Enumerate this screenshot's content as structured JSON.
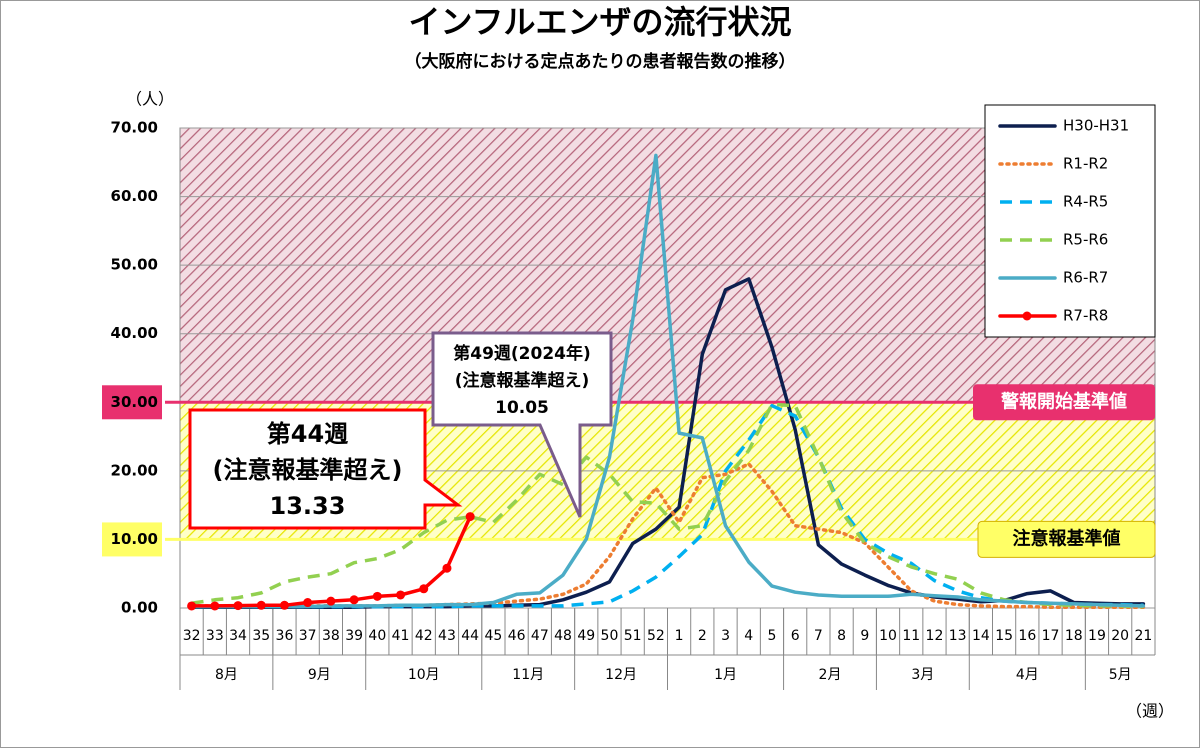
{
  "chart_data": {
    "type": "line",
    "title": "インフルエンザの流行状況",
    "subtitle": "（大阪府における定点あたりの患者報告数の推移）",
    "y_label": "（人）",
    "x_label": "（週）",
    "categories": [
      "32",
      "33",
      "34",
      "35",
      "36",
      "37",
      "38",
      "39",
      "40",
      "41",
      "42",
      "43",
      "44",
      "45",
      "46",
      "47",
      "48",
      "49",
      "50",
      "51",
      "52",
      "1",
      "2",
      "3",
      "4",
      "5",
      "6",
      "7",
      "8",
      "9",
      "10",
      "11",
      "12",
      "13",
      "14",
      "15",
      "16",
      "17",
      "18",
      "19",
      "20",
      "21"
    ],
    "x_groups": [
      {
        "label": "8月",
        "count": 4
      },
      {
        "label": "9月",
        "count": 4
      },
      {
        "label": "10月",
        "count": 5
      },
      {
        "label": "11月",
        "count": 4
      },
      {
        "label": "12月",
        "count": 4
      },
      {
        "label": "1月",
        "count": 5
      },
      {
        "label": "2月",
        "count": 4
      },
      {
        "label": "3月",
        "count": 4
      },
      {
        "label": "4月",
        "count": 5
      },
      {
        "label": "5月",
        "count": 3
      }
    ],
    "ylim": [
      0,
      70
    ],
    "yticks": [
      {
        "value": 0,
        "label": "0.00"
      },
      {
        "value": 10,
        "label": "10.00"
      },
      {
        "value": 20,
        "label": "20.00"
      },
      {
        "value": 30,
        "label": "30.00"
      },
      {
        "value": 40,
        "label": "40.00"
      },
      {
        "value": 50,
        "label": "50.00"
      },
      {
        "value": 60,
        "label": "60.00"
      },
      {
        "value": 70,
        "label": "70.00"
      }
    ],
    "grid": true,
    "legend": "upper right",
    "thresholds": [
      {
        "value": 10,
        "label": "注意報基準値",
        "color": "#ffff66"
      },
      {
        "value": 30,
        "label": "警報開始基準値",
        "color": "#e8306e"
      }
    ],
    "series": [
      {
        "name": "H30-H31",
        "color": "#0d1f4f",
        "dash": "solid",
        "marker": false,
        "values": [
          0.1,
          0.1,
          0.1,
          0.1,
          0.1,
          0.1,
          0.1,
          0.1,
          0.2,
          0.2,
          0.2,
          0.2,
          0.3,
          0.3,
          0.4,
          0.5,
          1.2,
          2.3,
          3.8,
          9.4,
          11.5,
          14.7,
          37,
          46.4,
          48,
          38,
          26,
          9.2,
          6.4,
          4.8,
          3.3,
          2.2,
          1.6,
          1.3,
          0.9,
          1.1,
          2.1,
          2.5,
          0.8,
          0.7,
          0.6,
          0.6
        ]
      },
      {
        "name": "R1-R2",
        "color": "#ed7d31",
        "dash": "dotted",
        "marker": false,
        "values": [
          0.3,
          0.3,
          0.3,
          0.3,
          0.3,
          0.3,
          0.3,
          0.3,
          0.3,
          0.4,
          0.4,
          0.5,
          0.6,
          0.7,
          1.0,
          1.3,
          2.0,
          3.5,
          7.5,
          13,
          17.5,
          12.5,
          19,
          19.5,
          21,
          17,
          12,
          11.5,
          11,
          9.5,
          6,
          2.5,
          1,
          0.5,
          0.3,
          0.2,
          0.2,
          0.1,
          0.1,
          0.1,
          0.1,
          0.1
        ]
      },
      {
        "name": "R4-R5",
        "color": "#00b0f0",
        "dash": "dashed",
        "marker": false,
        "values": [
          0.2,
          0.2,
          0.2,
          0.2,
          0.2,
          0.2,
          0.2,
          0.2,
          0.2,
          0.2,
          0.2,
          0.2,
          0.3,
          0.3,
          0.3,
          0.3,
          0.3,
          0.6,
          0.9,
          2.5,
          4.5,
          7.5,
          10.7,
          20,
          24.5,
          29.5,
          28,
          22,
          14.5,
          10,
          8,
          6.5,
          4,
          2.5,
          1.5,
          1,
          0.8,
          0.7,
          0.6,
          0.5,
          0.5,
          0.4
        ]
      },
      {
        "name": "R5-R6",
        "color": "#92d050",
        "dash": "dashed",
        "marker": false,
        "values": [
          0.7,
          1.2,
          1.5,
          2.2,
          3.8,
          4.5,
          5.0,
          6.6,
          7.2,
          8.5,
          11,
          12.8,
          13.3,
          12.5,
          15.7,
          19.5,
          18,
          22,
          19.5,
          15.5,
          15.3,
          11.5,
          12,
          18.5,
          23,
          29.7,
          29.5,
          22,
          14,
          9.5,
          7.5,
          6,
          5,
          4.2,
          2.2,
          1.2,
          0.8,
          0.5,
          0.4,
          0.3,
          0.3,
          0.2
        ]
      },
      {
        "name": "R6-R7",
        "color": "#4bacc6",
        "dash": "solid",
        "marker": false,
        "values": [
          0.2,
          0.2,
          0.2,
          0.2,
          0.2,
          0.2,
          0.3,
          0.3,
          0.3,
          0.4,
          0.4,
          0.5,
          0.5,
          0.8,
          2.0,
          2.2,
          4.8,
          10.05,
          22,
          42,
          66,
          25.5,
          24.8,
          12,
          6.7,
          3.2,
          2.3,
          1.9,
          1.7,
          1.7,
          1.7,
          2.0,
          1.8,
          1.6,
          1.2,
          1.0,
          0.8,
          0.7,
          0.6,
          0.5,
          0.4,
          0.3
        ]
      },
      {
        "name": "R7-R8",
        "color": "#ff0000",
        "dash": "solid",
        "marker": true,
        "values": [
          0.3,
          0.3,
          0.35,
          0.4,
          0.4,
          0.8,
          1.0,
          1.2,
          1.7,
          1.9,
          2.8,
          5.8,
          13.33,
          null,
          null,
          null,
          null,
          null,
          null,
          null,
          null,
          null,
          null,
          null,
          null,
          null,
          null,
          null,
          null,
          null,
          null,
          null,
          null,
          null,
          null,
          null,
          null,
          null,
          null,
          null,
          null,
          null
        ]
      }
    ],
    "annotations": [
      {
        "lines": [
          "第44週",
          "(注意報基準超え)",
          "13.33"
        ],
        "color": "#ff0000"
      },
      {
        "lines": [
          "第49週(2024年)",
          "(注意報基準超え)",
          "10.05"
        ],
        "color": "#7a5c8c"
      }
    ]
  }
}
